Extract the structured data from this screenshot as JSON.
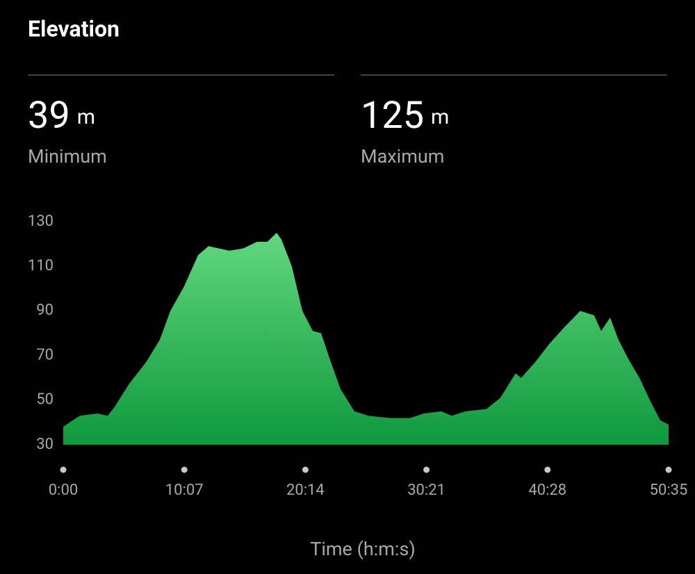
{
  "header": {
    "title": "Elevation"
  },
  "stats": [
    {
      "value": 39,
      "unit": "m",
      "label": "Minimum"
    },
    {
      "value": 125,
      "unit": "m",
      "label": "Maximum"
    }
  ],
  "chart_data": {
    "type": "area",
    "x_label": "Time (h:m:s)",
    "x": [
      0,
      31,
      84,
      171,
      223,
      258,
      328,
      415,
      484,
      537,
      606,
      676,
      728,
      781,
      833,
      902,
      972,
      1024,
      1070,
      1094,
      1146,
      1199,
      1251,
      1293,
      1338,
      1390,
      1460,
      1530,
      1634,
      1739,
      1808,
      1895,
      1948,
      2017,
      2122,
      2191,
      2268,
      2296,
      2366,
      2435,
      2505,
      2592,
      2662,
      2697,
      2742,
      2784,
      2836,
      2889,
      2941,
      2993,
      3035
    ],
    "values": [
      38,
      40,
      43,
      44,
      43,
      47,
      57,
      67,
      77,
      90,
      101,
      115,
      119,
      118,
      117,
      118,
      121,
      121,
      125,
      122,
      110,
      90,
      81,
      80,
      68,
      55,
      45,
      43,
      42,
      42,
      44,
      45,
      43,
      45,
      46,
      51,
      62,
      60,
      67,
      75,
      82,
      90,
      88,
      81,
      87,
      77,
      68,
      60,
      50,
      41,
      39
    ],
    "colors": [
      "#62d87f",
      "#0f983d"
    ],
    "xlim": [
      0,
      3035
    ],
    "xticks": [
      {
        "value": 0,
        "label": "0:00"
      },
      {
        "value": 607,
        "label": "10:07"
      },
      {
        "value": 1214,
        "label": "20:14"
      },
      {
        "value": 1821,
        "label": "30:21"
      },
      {
        "value": 2428,
        "label": "40:28"
      },
      {
        "value": 3035,
        "label": "50:35"
      }
    ],
    "ylim": [
      30,
      130
    ],
    "yticks": [
      30,
      50,
      70,
      90,
      110,
      130
    ]
  }
}
